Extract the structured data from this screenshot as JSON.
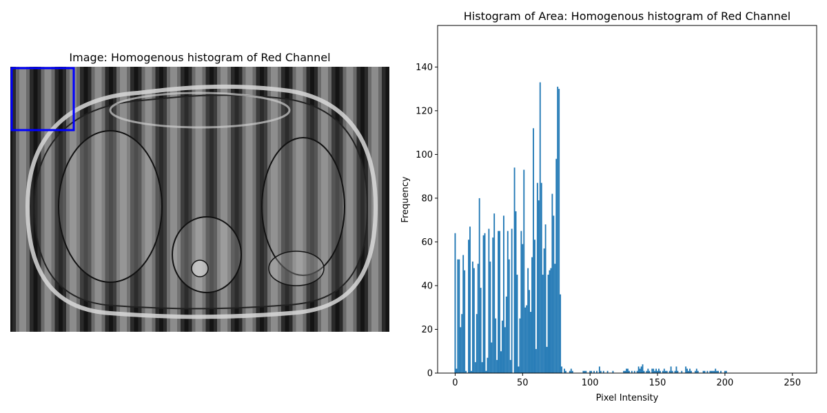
{
  "left_panel": {
    "title": "Image: Homogenous histogram of Red Channel",
    "roi_color": "#0000ff",
    "image_description_icon": "ct-abdominal-slice-with-vertical-stripes"
  },
  "chart_data": {
    "type": "bar",
    "title": "Histogram of Area: Homogenous histogram of Red Channel",
    "xlabel": "Pixel Intensity",
    "ylabel": "Frequency",
    "xlim": [
      -13,
      268
    ],
    "ylim": [
      0,
      159
    ],
    "xticks": [
      0,
      50,
      100,
      150,
      200,
      250
    ],
    "yticks": [
      0,
      20,
      40,
      60,
      80,
      100,
      120,
      140
    ],
    "bar_color": "#1f77b4",
    "grid": false,
    "x": [
      0,
      1,
      2,
      3,
      4,
      5,
      6,
      7,
      8,
      9,
      10,
      11,
      12,
      13,
      14,
      15,
      16,
      17,
      18,
      19,
      20,
      21,
      22,
      23,
      24,
      25,
      26,
      27,
      28,
      29,
      30,
      31,
      32,
      33,
      34,
      35,
      36,
      37,
      38,
      39,
      40,
      41,
      42,
      43,
      44,
      45,
      46,
      47,
      48,
      49,
      50,
      51,
      52,
      53,
      54,
      55,
      56,
      57,
      58,
      59,
      60,
      61,
      62,
      63,
      64,
      65,
      66,
      67,
      68,
      69,
      70,
      71,
      72,
      73,
      74,
      75,
      76,
      77,
      78,
      79,
      80,
      81,
      82,
      83,
      84,
      85,
      86,
      87,
      88,
      89,
      90,
      91,
      92,
      93,
      94,
      95,
      96,
      97,
      98,
      99,
      100,
      101,
      102,
      103,
      104,
      105,
      106,
      107,
      108,
      109,
      110,
      111,
      112,
      113,
      114,
      115,
      116,
      117,
      118,
      119,
      120,
      121,
      122,
      123,
      124,
      125,
      126,
      127,
      128,
      129,
      130,
      131,
      132,
      133,
      134,
      135,
      136,
      137,
      138,
      139,
      140,
      141,
      142,
      143,
      144,
      145,
      146,
      147,
      148,
      149,
      150,
      151,
      152,
      153,
      154,
      155,
      156,
      157,
      158,
      159,
      160,
      161,
      162,
      163,
      164,
      165,
      166,
      167,
      168,
      169,
      170,
      171,
      172,
      173,
      174,
      175,
      176,
      177,
      178,
      179,
      180,
      181,
      182,
      183,
      184,
      185,
      186,
      187,
      188,
      189,
      190,
      191,
      192,
      193,
      194,
      195,
      196,
      197,
      198,
      199,
      200,
      201,
      202,
      203,
      204,
      205
    ],
    "values": [
      64,
      2,
      52,
      52,
      21,
      27,
      54,
      47,
      1,
      0,
      61,
      67,
      1,
      51,
      48,
      5,
      27,
      50,
      80,
      39,
      5,
      63,
      64,
      1,
      7,
      66,
      51,
      14,
      62,
      73,
      25,
      6,
      65,
      65,
      10,
      24,
      72,
      21,
      35,
      65,
      52,
      6,
      66,
      0,
      94,
      74,
      45,
      3,
      25,
      65,
      59,
      93,
      30,
      31,
      48,
      38,
      28,
      53,
      112,
      61,
      11,
      87,
      79,
      133,
      87,
      45,
      57,
      68,
      12,
      45,
      47,
      48,
      82,
      72,
      50,
      98,
      131,
      130,
      36,
      3,
      0,
      2,
      1,
      0,
      0,
      1,
      2,
      1,
      0,
      0,
      0,
      0,
      0,
      0,
      0,
      1,
      1,
      1,
      0,
      0,
      1,
      1,
      0,
      1,
      0,
      1,
      0,
      3,
      1,
      0,
      1,
      0,
      0,
      1,
      0,
      0,
      0,
      1,
      0,
      0,
      0,
      0,
      0,
      0,
      0,
      1,
      1,
      2,
      2,
      1,
      0,
      1,
      0,
      1,
      0,
      1,
      3,
      2,
      3,
      4,
      1,
      0,
      1,
      2,
      1,
      0,
      2,
      2,
      1,
      2,
      1,
      2,
      1,
      0,
      1,
      2,
      1,
      1,
      0,
      1,
      3,
      1,
      0,
      1,
      3,
      1,
      0,
      0,
      1,
      0,
      0,
      3,
      2,
      1,
      2,
      1,
      0,
      0,
      1,
      2,
      1,
      0,
      0,
      0,
      1,
      1,
      0,
      1,
      0,
      1,
      1,
      1,
      1,
      2,
      1,
      1,
      0,
      1,
      0,
      0,
      1,
      1,
      0,
      0,
      0,
      0
    ]
  }
}
